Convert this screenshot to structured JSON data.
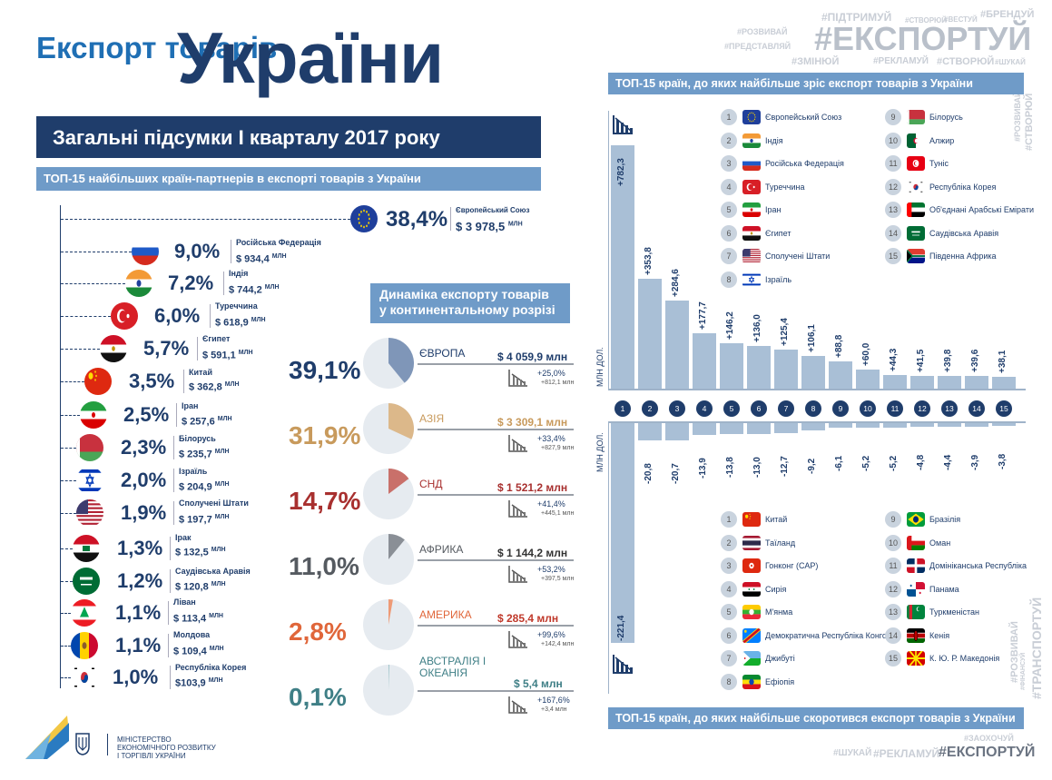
{
  "header": {
    "title_small": "Експорт товарів",
    "title_big": "України",
    "summary": "Загальні підсумки I кварталу 2017 року"
  },
  "hashtags": {
    "top": [
      "#ПІДТРИМУЙ",
      "#СТВОРЮЙ",
      "#ВЕСТУЙ",
      "#БРЕНДУЙ",
      "#РОЗВИВАЙ",
      "#ПРЕДСТАВЛЯЙ",
      "#ЕКСПОРТУЙ",
      "#ЗМІНЮЙ",
      "#РЕКЛАМУЙ",
      "#СТВОРЮЙ",
      "#ШУКАЙ"
    ],
    "side_top": [
      "#РОЗВИВАЙ",
      "#СТВОРЮЙ"
    ],
    "side_bottom": [
      "#РОЗВИВАЙ",
      "#ФІНАНСУЙ",
      "#ТРАНСПОРТУЙ"
    ],
    "bottom": [
      "#ЗАОХОЧУЙ",
      "#ШУКАЙ",
      "#РЕКЛАМУЙ",
      "#ЕКСПОРТУЙ"
    ]
  },
  "ministry": {
    "line1": "МІНІСТЕРСТВО",
    "line2": "ЕКОНОМІЧНОГО РОЗВИТКУ",
    "line3": "І ТОРГІВЛІ УКРАЇНИ"
  },
  "partners": {
    "title": "ТОП-15 найбільших країн-партнерів в експорті товарів з України",
    "items": [
      {
        "name": "Європейський Союз",
        "pct": "38,4%",
        "value": "$ 3 978,5",
        "unit": "МЛН",
        "flag": "eu"
      },
      {
        "name": "Російська Федерація",
        "pct": "9,0%",
        "value": "$ 934,4",
        "unit": "МЛН",
        "flag": "ru"
      },
      {
        "name": "Індія",
        "pct": "7,2%",
        "value": "$ 744,2",
        "unit": "МЛН",
        "flag": "in"
      },
      {
        "name": "Туреччина",
        "pct": "6,0%",
        "value": "$ 618,9",
        "unit": "МЛН",
        "flag": "tr"
      },
      {
        "name": "Єгипет",
        "pct": "5,7%",
        "value": "$ 591,1",
        "unit": "МЛН",
        "flag": "eg"
      },
      {
        "name": "Китай",
        "pct": "3,5%",
        "value": "$ 362,8",
        "unit": "МЛН",
        "flag": "cn"
      },
      {
        "name": "Іран",
        "pct": "2,5%",
        "value": "$ 257,6",
        "unit": "МЛН",
        "flag": "ir"
      },
      {
        "name": "Білорусь",
        "pct": "2,3%",
        "value": "$ 235,7",
        "unit": "МЛН",
        "flag": "by"
      },
      {
        "name": "Ізраїль",
        "pct": "2,0%",
        "value": "$ 204,9",
        "unit": "МЛН",
        "flag": "il"
      },
      {
        "name": "Сполучені Штати",
        "pct": "1,9%",
        "value": "$ 197,7",
        "unit": "МЛН",
        "flag": "us"
      },
      {
        "name": "Ірак",
        "pct": "1,3%",
        "value": "$ 132,5",
        "unit": "МЛН",
        "flag": "iq"
      },
      {
        "name": "Саудівська Аравія",
        "pct": "1,2%",
        "value": "$ 120,8",
        "unit": "МЛН",
        "flag": "sa"
      },
      {
        "name": "Ліван",
        "pct": "1,1%",
        "value": "$ 113,4",
        "unit": "МЛН",
        "flag": "lb"
      },
      {
        "name": "Молдова",
        "pct": "1,1%",
        "value": "$ 109,4",
        "unit": "МЛН",
        "flag": "md"
      },
      {
        "name": "Республіка Корея",
        "pct": "1,0%",
        "value": "$103,9",
        "unit": "МЛН",
        "flag": "kr"
      }
    ]
  },
  "regions": {
    "title_line1": "Динаміка експорту товарів",
    "title_line2": "у континентальному розрізі",
    "items": [
      {
        "name": "ЄВРОПА",
        "pct": "39,1%",
        "value": "$ 4 059,9 млн",
        "change_pct": "+25,0%",
        "change_abs": "+812,1 млн",
        "share": 39.1,
        "color": "#1f3d6b",
        "pie_color": "#7f96b8",
        "val_color": "#1f3d6b"
      },
      {
        "name": "АЗІЯ",
        "pct": "31,9%",
        "value": "$ 3 309,1 млн",
        "change_pct": "+33,4%",
        "change_abs": "+827,9 млн",
        "share": 31.9,
        "color": "#c89a5c",
        "pie_color": "#dcb88a",
        "val_color": "#c89a5c"
      },
      {
        "name": "СНД",
        "pct": "14,7%",
        "value": "$ 1 521,2 млн",
        "change_pct": "+41,4%",
        "change_abs": "+445,1 млн",
        "share": 14.7,
        "color": "#a8302f",
        "pie_color": "#c9706a",
        "val_color": "#a8302f"
      },
      {
        "name": "АФРИКА",
        "pct": "11,0%",
        "value": "$ 1 144,2 млн",
        "change_pct": "+53,2%",
        "change_abs": "+397,5 млн",
        "share": 11.0,
        "color": "#555a60",
        "pie_color": "#8a8f96",
        "val_color": "#333"
      },
      {
        "name": "АМЕРИКА",
        "pct": "2,8%",
        "value": "$ 285,4 млн",
        "change_pct": "+99,6%",
        "change_abs": "+142,4 млн",
        "share": 2.8,
        "color": "#e0663a",
        "pie_color": "#ee9a76",
        "val_color": "#c0392b"
      },
      {
        "name": "АВСТРАЛІЯ І ОКЕАНІЯ",
        "pct": "0,1%",
        "value": "$ 5,4 млн",
        "change_pct": "+167,6%",
        "change_abs": "+3,4 млн",
        "share": 0.1,
        "color": "#3f7f86",
        "pie_color": "#7fb3b8",
        "val_color": "#3f7f86"
      }
    ]
  },
  "growth": {
    "title": "ТОП-15 країн, до яких найбільше зріс експорт товарів з України",
    "unit": "МЛН ДОЛ.",
    "countries": [
      {
        "n": "1",
        "name": "Європейський Союз",
        "flag": "eu"
      },
      {
        "n": "2",
        "name": "Індія",
        "flag": "in"
      },
      {
        "n": "3",
        "name": "Російська Федерація",
        "flag": "ru"
      },
      {
        "n": "4",
        "name": "Туреччина",
        "flag": "tr"
      },
      {
        "n": "5",
        "name": "Іран",
        "flag": "ir"
      },
      {
        "n": "6",
        "name": "Єгипет",
        "flag": "eg"
      },
      {
        "n": "7",
        "name": "Сполучені Штати",
        "flag": "us"
      },
      {
        "n": "8",
        "name": "Ізраїль",
        "flag": "il"
      },
      {
        "n": "9",
        "name": "Білорусь",
        "flag": "by"
      },
      {
        "n": "10",
        "name": "Алжир",
        "flag": "dz"
      },
      {
        "n": "11",
        "name": "Туніс",
        "flag": "tn"
      },
      {
        "n": "12",
        "name": "Республіка Корея",
        "flag": "kr"
      },
      {
        "n": "13",
        "name": "Об'єднані Арабські Емірати",
        "flag": "ae"
      },
      {
        "n": "14",
        "name": "Саудівська Аравія",
        "flag": "sa"
      },
      {
        "n": "15",
        "name": "Південна Африка",
        "flag": "za"
      }
    ]
  },
  "decline": {
    "title": "ТОП-15 країн, до яких найбільше скоротився експорт товарів з України",
    "unit": "МЛН ДОЛ.",
    "countries": [
      {
        "n": "1",
        "name": "Китай",
        "flag": "cn"
      },
      {
        "n": "2",
        "name": "Таїланд",
        "flag": "th"
      },
      {
        "n": "3",
        "name": "Гонконг (САР)",
        "flag": "hk"
      },
      {
        "n": "4",
        "name": "Сирія",
        "flag": "sy"
      },
      {
        "n": "5",
        "name": "М'янма",
        "flag": "mm"
      },
      {
        "n": "6",
        "name": "Демократична Республіка Конго",
        "flag": "cd"
      },
      {
        "n": "7",
        "name": "Джибуті",
        "flag": "dj"
      },
      {
        "n": "8",
        "name": "Ефіопія",
        "flag": "et"
      },
      {
        "n": "9",
        "name": "Бразілія",
        "flag": "br"
      },
      {
        "n": "10",
        "name": "Оман",
        "flag": "om"
      },
      {
        "n": "11",
        "name": "Домініканська Республіка",
        "flag": "do"
      },
      {
        "n": "12",
        "name": "Панама",
        "flag": "pa"
      },
      {
        "n": "13",
        "name": "Туркменістан",
        "flag": "tm"
      },
      {
        "n": "14",
        "name": "Кенія",
        "flag": "ke"
      },
      {
        "n": "15",
        "name": "К. Ю. Р. Македонія",
        "flag": "mk"
      }
    ]
  },
  "chart_data": [
    {
      "type": "bar",
      "title": "ТОП-15 країн, до яких найбільше зріс експорт товарів з України",
      "ylabel": "МЛН ДОЛ.",
      "categories": [
        "1",
        "2",
        "3",
        "4",
        "5",
        "6",
        "7",
        "8",
        "9",
        "10",
        "11",
        "12",
        "13",
        "14",
        "15"
      ],
      "values": [
        782.3,
        353.8,
        284.6,
        177.7,
        146.2,
        136.0,
        125.4,
        106.1,
        88.8,
        60.0,
        44.3,
        41.5,
        39.8,
        39.6,
        38.1
      ],
      "labels": [
        "+782,3",
        "+353,8",
        "+284,6",
        "+177,7",
        "+146,2",
        "+136,0",
        "+125,4",
        "+106,1",
        "+88,8",
        "+60,0",
        "+44,3",
        "+41,5",
        "+39,8",
        "+39,6",
        "+38,1"
      ],
      "ylim": [
        0,
        800
      ]
    },
    {
      "type": "bar",
      "title": "ТОП-15 країн, до яких найбільше скоротився експорт товарів з України",
      "ylabel": "МЛН ДОЛ.",
      "categories": [
        "1",
        "2",
        "3",
        "4",
        "5",
        "6",
        "7",
        "8",
        "9",
        "10",
        "11",
        "12",
        "13",
        "14",
        "15"
      ],
      "values": [
        -221.4,
        -20.8,
        -20.7,
        -13.9,
        -13.8,
        -13.0,
        -12.7,
        -9.2,
        -6.1,
        -5.2,
        -5.2,
        -4.8,
        -4.4,
        -3.9,
        -3.8
      ],
      "labels": [
        "-221,4",
        "-20,8",
        "-20,7",
        "-13,9",
        "-13,8",
        "-13,0",
        "-12,7",
        "-9,2",
        "-6,1",
        "-5,2",
        "-5,2",
        "-4,8",
        "-4,4",
        "-3,9",
        "-3,8"
      ],
      "ylim": [
        -230,
        0
      ]
    }
  ]
}
